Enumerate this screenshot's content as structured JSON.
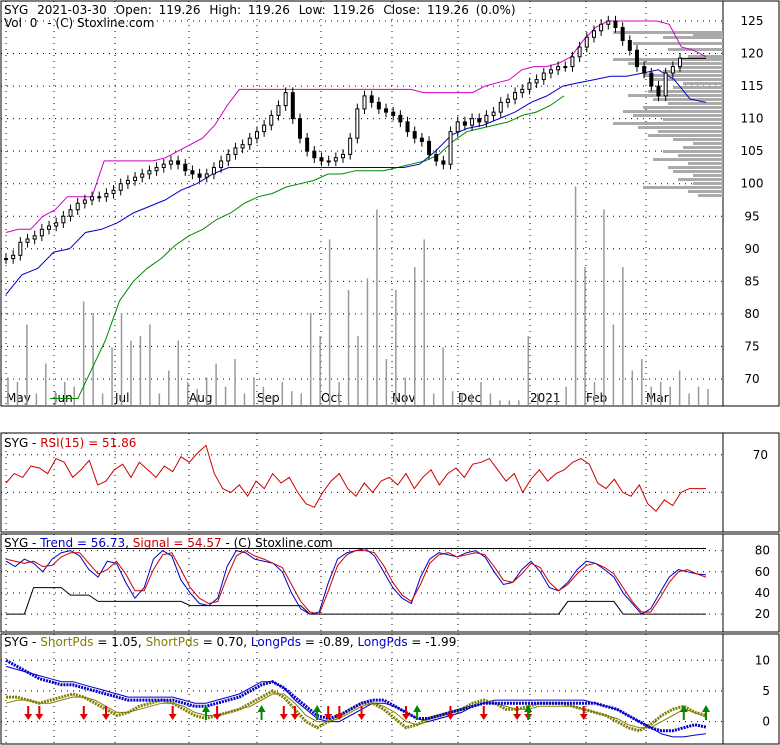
{
  "header": {
    "symbol": "SYG",
    "date": "2021-03-30",
    "open_label": "Open:",
    "open": "119.26",
    "high_label": "High:",
    "high": "119.26",
    "low_label": "Low:",
    "low": "119.26",
    "close_label": "Close:",
    "close": "119.26",
    "change": "(0.0%)",
    "vol_label": "Vol",
    "vol": "0",
    "copyright": "-  (C) Stoxline.com"
  },
  "colors": {
    "price_bar": "#000000",
    "upper_channel": "#cc00cc",
    "mid_channel": "#0000cc",
    "lower_channel": "#008800",
    "volume": "#999999",
    "volume_profile": "#aaaaaa",
    "rsi": "#cc0000",
    "trend": "#0000cc",
    "signal": "#cc0000",
    "short_pds": "#808000",
    "long_pds": "#0000cc",
    "grid": "#000000",
    "arrow_up": "#008800",
    "arrow_down": "#dd0000"
  },
  "chart_data": [
    {
      "type": "candlestick",
      "panel": "price",
      "y_ticks": [
        "125",
        "120",
        "115",
        "110",
        "105",
        "100",
        "95",
        "90",
        "85",
        "80",
        "75",
        "70"
      ],
      "ylim": [
        66,
        127
      ],
      "x_ticks": [
        "May",
        "Jun",
        "Jul",
        "Aug",
        "Sep",
        "Oct",
        "Nov",
        "Dec",
        "2021",
        "Feb",
        "Mar"
      ],
      "close_series": [
        88.5,
        89.0,
        91.0,
        91.5,
        92.0,
        93.0,
        93.5,
        94.0,
        95.0,
        96.0,
        97.0,
        97.5,
        98.0,
        98.0,
        98.5,
        99.0,
        100.0,
        100.5,
        101.0,
        101.5,
        102.0,
        102.5,
        103.0,
        103.5,
        103.0,
        102.0,
        101.5,
        101.0,
        101.5,
        102.5,
        103.5,
        104.5,
        105.5,
        106.0,
        107.0,
        108.0,
        109.0,
        110.5,
        112.0,
        114.0,
        110.0,
        107.0,
        105.0,
        104.0,
        103.5,
        103.5,
        104.0,
        104.5,
        107.0,
        111.5,
        113.5,
        112.5,
        111.5,
        111.0,
        110.5,
        109.5,
        108.0,
        107.0,
        106.5,
        104.5,
        103.5,
        103.0,
        108.0,
        109.5,
        109.0,
        110.0,
        109.5,
        110.5,
        111.0,
        112.5,
        113.0,
        114.0,
        114.5,
        115.5,
        116.0,
        117.0,
        117.5,
        118.0,
        118.0,
        119.5,
        121.0,
        122.5,
        123.5,
        124.5,
        125.0,
        124.0,
        122.0,
        120.5,
        118.0,
        117.0,
        115.0,
        113.5,
        117.0,
        118.0,
        119.3
      ],
      "upper_channel": [
        92.5,
        93.0,
        93.0,
        95.0,
        96.0,
        98.0,
        98.0,
        98.0,
        103.5,
        103.5,
        103.5,
        103.5,
        103.5,
        104.0,
        105.0,
        106.0,
        107.0,
        109.0,
        112.0,
        114.5,
        114.5,
        114.5,
        114.5,
        114.5,
        114.5,
        114.5,
        114.5,
        114.5,
        114.5,
        114.5,
        114.5,
        114.5,
        114.5,
        114.5,
        114.0,
        114.0,
        114.0,
        114.0,
        114.0,
        115.0,
        115.5,
        116.0,
        117.5,
        118.0,
        118.0,
        118.5,
        119.5,
        122.0,
        124.0,
        125.0,
        125.0,
        125.0,
        125.0,
        125.0,
        124.5,
        121.0,
        120.5,
        119.5
      ],
      "mid_channel": [
        83.0,
        86.0,
        87.0,
        89.5,
        90.0,
        92.5,
        93.0,
        94.0,
        95.5,
        96.5,
        97.5,
        99.0,
        100.0,
        101.5,
        102.5,
        102.5,
        102.5,
        102.5,
        102.5,
        102.5,
        102.5,
        102.5,
        102.5,
        102.5,
        102.5,
        102.5,
        103.0,
        105.0,
        107.5,
        108.5,
        109.0,
        110.0,
        111.0,
        112.5,
        113.5,
        115.0,
        115.5,
        116.0,
        116.5,
        116.5,
        117.0,
        117.5,
        116.0,
        113.0,
        112.5
      ],
      "lower_channel": [
        67.0,
        67.0,
        67.0,
        71.5,
        76.0,
        82.0,
        85.0,
        87.0,
        88.5,
        90.5,
        92.0,
        93.0,
        94.5,
        95.5,
        97.0,
        98.0,
        98.5,
        99.5,
        100.0,
        100.5,
        101.5,
        101.5,
        102.0,
        102.0,
        102.0,
        102.5,
        103.0,
        103.5,
        104.5,
        106.5,
        108.0,
        108.5,
        109.0,
        109.5,
        110.5,
        111.0,
        112.0,
        113.5
      ]
    },
    {
      "type": "bar",
      "panel": "volume",
      "note": "relative volume heights (0-1)",
      "values": [
        0.12,
        0.1,
        0.35,
        0.05,
        0.18,
        0.06,
        0.1,
        0.08,
        0.45,
        0.4,
        0.05,
        0.25,
        0.4,
        0.28,
        0.3,
        0.35,
        0.05,
        0.15,
        0.28,
        0.1,
        0.07,
        0.12,
        0.18,
        0.08,
        0.2,
        0.05,
        0.12,
        0.08,
        0.04,
        0.1,
        0.06,
        0.05,
        0.4,
        0.3,
        0.72,
        0.1,
        0.5,
        0.3,
        0.55,
        0.85,
        0.2,
        0.5,
        0.12,
        0.6,
        0.72,
        0.05,
        0.25,
        0.06,
        0.05,
        0.05,
        0.1,
        0.05,
        0.02,
        0.02,
        0.02,
        0.3,
        0.05,
        0.02,
        0.02,
        0.08,
        0.95,
        0.6,
        0.1,
        0.85,
        0.35,
        0.6,
        0.15,
        0.2,
        0.08,
        0.1,
        0.08,
        0.15,
        0.05,
        0.08,
        0.07
      ]
    },
    {
      "type": "line",
      "panel": "rsi",
      "title": "RSI(15) = 51.86",
      "y_ticks": [
        "70"
      ],
      "ylim": [
        30,
        80
      ],
      "series": [
        {
          "name": "RSI(15)",
          "values": [
            55,
            60,
            58,
            64,
            63,
            60,
            68,
            66,
            58,
            62,
            67,
            54,
            56,
            62,
            65,
            58,
            66,
            62,
            58,
            64,
            61,
            69,
            66,
            71,
            75,
            60,
            52,
            50,
            54,
            48,
            56,
            52,
            60,
            55,
            58,
            50,
            44,
            42,
            50,
            56,
            60,
            52,
            48,
            55,
            50,
            56,
            58,
            54,
            60,
            52,
            58,
            62,
            54,
            60,
            63,
            58,
            65,
            66,
            68,
            62,
            56,
            60,
            50,
            57,
            62,
            56,
            60,
            62,
            66,
            68,
            65,
            55,
            52,
            57,
            50,
            48,
            54,
            44,
            40,
            46,
            43,
            50,
            52,
            52,
            52
          ]
        }
      ]
    },
    {
      "type": "line",
      "panel": "stochastic",
      "title": "Trend = 56.73, Signal = 54.57",
      "y_ticks": [
        "80",
        "60",
        "40",
        "20"
      ],
      "ylim": [
        5,
        90
      ],
      "series": [
        {
          "name": "Trend",
          "values": [
            70,
            65,
            72,
            68,
            60,
            72,
            78,
            80,
            75,
            62,
            55,
            70,
            68,
            50,
            35,
            45,
            72,
            80,
            75,
            52,
            40,
            30,
            28,
            35,
            65,
            80,
            78,
            72,
            70,
            68,
            60,
            40,
            25,
            20,
            22,
            50,
            72,
            78,
            80,
            82,
            75,
            60,
            45,
            35,
            30,
            55,
            72,
            78,
            76,
            74,
            78,
            80,
            74,
            60,
            48,
            50,
            62,
            70,
            60,
            45,
            42,
            50,
            62,
            70,
            68,
            62,
            55,
            40,
            30,
            20,
            25,
            40,
            55,
            62,
            60,
            58,
            57
          ]
        },
        {
          "name": "Signal",
          "values": [
            72,
            70,
            68,
            70,
            65,
            66,
            74,
            78,
            78,
            68,
            58,
            62,
            70,
            58,
            42,
            42,
            62,
            76,
            78,
            62,
            45,
            35,
            30,
            32,
            55,
            75,
            80,
            75,
            72,
            68,
            64,
            48,
            32,
            22,
            20,
            42,
            66,
            76,
            80,
            80,
            78,
            66,
            50,
            38,
            32,
            48,
            68,
            76,
            78,
            74,
            76,
            78,
            76,
            65,
            52,
            50,
            58,
            68,
            64,
            50,
            42,
            48,
            58,
            66,
            68,
            64,
            58,
            45,
            32,
            22,
            22,
            35,
            50,
            60,
            62,
            58,
            55
          ]
        },
        {
          "name": "Base",
          "values": [
            20,
            20,
            20,
            45,
            45,
            45,
            45,
            38,
            38,
            38,
            32,
            32,
            32,
            32,
            32,
            32,
            32,
            32,
            32,
            32,
            28,
            28,
            28,
            28,
            28,
            28,
            28,
            28,
            28,
            28,
            28,
            28,
            28,
            20,
            20,
            20,
            20,
            20,
            20,
            20,
            20,
            20,
            20,
            20,
            20,
            20,
            20,
            20,
            20,
            20,
            20,
            20,
            20,
            20,
            20,
            20,
            20,
            20,
            20,
            20,
            20,
            32,
            32,
            32,
            32,
            32,
            32,
            20,
            20,
            20,
            20,
            20,
            20,
            20,
            20,
            20,
            20
          ]
        }
      ]
    },
    {
      "type": "line",
      "panel": "oscillator",
      "title": "ShortPds = 1.05, ShortPds = 0.70, LongPds = -0.89, LongPds = -1.99",
      "y_ticks": [
        "10",
        "5",
        "0"
      ],
      "ylim": [
        -3,
        12
      ],
      "series": [
        {
          "name": "ShortPds",
          "values": [
            4,
            4,
            3.5,
            3,
            3.5,
            4,
            4.5,
            4,
            3,
            2,
            1,
            1.5,
            2.5,
            3,
            3.5,
            3,
            2,
            1,
            0.5,
            1,
            1.5,
            2,
            3,
            4,
            5,
            4,
            2,
            0,
            -1,
            0,
            1,
            2,
            3,
            3,
            2,
            0.5,
            -1,
            -0.5,
            0.5,
            1,
            1.5,
            2,
            3,
            3.5,
            3,
            2,
            2,
            2.5,
            3,
            3,
            3,
            2.5,
            2,
            1.5,
            1,
            0,
            -1,
            -1.5,
            -0.5,
            1,
            2,
            2.5,
            1.5,
            1.05
          ]
        },
        {
          "name": "ShortPds",
          "values": [
            3,
            3.5,
            3.5,
            3,
            3,
            3.5,
            4,
            4,
            3.5,
            2.5,
            1.5,
            1.5,
            2,
            2.5,
            3,
            3,
            2.5,
            1.5,
            1,
            1,
            1.5,
            2,
            2.5,
            3.5,
            4.5,
            4.5,
            3,
            1,
            0,
            0,
            0.5,
            1.5,
            2.5,
            3,
            2.5,
            1.5,
            0,
            -0.5,
            0,
            0.5,
            1,
            1.5,
            2.5,
            3,
            3,
            2.5,
            2,
            2,
            2.5,
            2.5,
            2.5,
            2.5,
            2,
            1.5,
            1,
            0.5,
            -0.5,
            -1,
            -1,
            0,
            1,
            2,
            1.5,
            0.7
          ]
        },
        {
          "name": "LongPds",
          "values": [
            10,
            9,
            8,
            7,
            6.5,
            6,
            6,
            5.5,
            5,
            4.5,
            4,
            3.5,
            3.5,
            3.5,
            3.5,
            3.5,
            3,
            2.5,
            2.5,
            3,
            3.5,
            4,
            5,
            6,
            6.5,
            5.5,
            4,
            2.5,
            1,
            0.5,
            1,
            2,
            3,
            3.5,
            3.5,
            2.5,
            1.5,
            0.5,
            0.5,
            1,
            1.5,
            2,
            2.5,
            3,
            3,
            3,
            3,
            3,
            3,
            3,
            3,
            3,
            3,
            3,
            2.5,
            2,
            1,
            0,
            -1,
            -1.5,
            -1.5,
            -1,
            -0.5,
            -0.89
          ]
        },
        {
          "name": "LongPds",
          "values": [
            9,
            8.5,
            8,
            7.5,
            7,
            6.5,
            6.5,
            6,
            5.5,
            5,
            4.5,
            4,
            4,
            4,
            4,
            4,
            3.5,
            3,
            3,
            3.5,
            4,
            4.5,
            5.5,
            6.5,
            6.5,
            5.5,
            3.5,
            2,
            0.5,
            0,
            0,
            1,
            2,
            3,
            3,
            2.5,
            1.5,
            0.5,
            0,
            0.5,
            1,
            1.5,
            2.5,
            3,
            3.5,
            3.5,
            3.5,
            3.5,
            3.5,
            3.5,
            3.5,
            3.5,
            3.5,
            3,
            2.5,
            2,
            1,
            0,
            -1,
            -2,
            -2.5,
            -2.5,
            -2.2,
            -1.99
          ]
        }
      ],
      "up_arrows": [
        18,
        23,
        28,
        37,
        47,
        61,
        63
      ],
      "down_arrows": [
        2,
        3,
        7,
        9,
        15,
        19,
        25,
        26,
        29,
        30,
        32,
        36,
        40,
        43,
        46,
        47,
        52
      ]
    }
  ],
  "rsi_tick": "70",
  "stoch_ticks": [
    "80",
    "60",
    "40",
    "20"
  ],
  "osc_ticks": [
    "10",
    "5",
    "0"
  ]
}
